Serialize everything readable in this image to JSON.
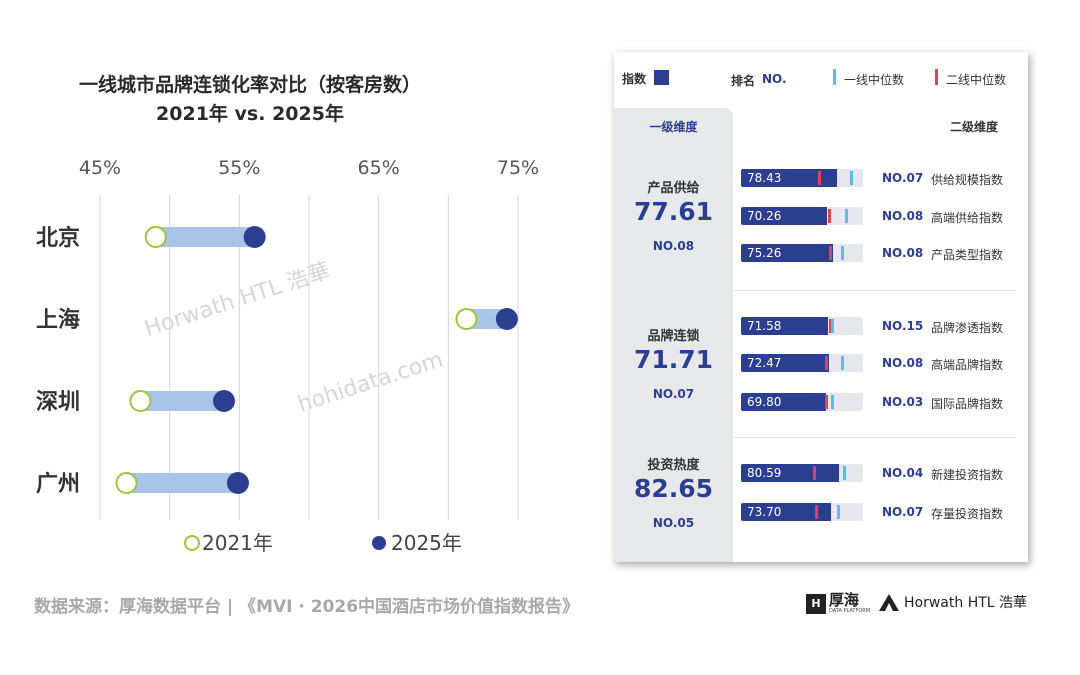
{
  "chart_data": [
    {
      "type": "dumbbell",
      "title": "一线城市品牌连锁化率对比（按客房数）",
      "subtitle": "2021年 vs. 2025年",
      "x_ticks": [
        "45%",
        "55%",
        "65%",
        "75%"
      ],
      "xlim": [
        45,
        75
      ],
      "grid": true,
      "categories": [
        "北京",
        "上海",
        "深圳",
        "广州"
      ],
      "series": [
        {
          "name": "2021年",
          "values": [
            49.0,
            71.3,
            47.9,
            46.9
          ]
        },
        {
          "name": "2025年",
          "values": [
            56.1,
            74.2,
            53.9,
            54.9
          ]
        }
      ],
      "legend_position": "bottom"
    },
    {
      "type": "bar",
      "legend": {
        "index_label": "指数",
        "rank_label": "排名",
        "rank_sample": "NO.",
        "median1_label": "一线中位数",
        "median2_label": "二线中位数"
      },
      "header": {
        "level1": "一级维度",
        "level2": "二级维度"
      },
      "xlim": [
        0,
        100
      ],
      "groups": [
        {
          "name": "产品供给",
          "score": "77.61",
          "rank": "NO.08",
          "items": [
            {
              "value": 78.43,
              "value_label": "78.43",
              "rank": "NO.07",
              "name": "供给规模指数",
              "median1": 89,
              "median2": 63
            },
            {
              "value": 70.26,
              "value_label": "70.26",
              "rank": "NO.08",
              "name": "高端供给指数",
              "median1": 85,
              "median2": 71
            },
            {
              "value": 75.26,
              "value_label": "75.26",
              "rank": "NO.08",
              "name": "产品类型指数",
              "median1": 82,
              "median2": 72
            }
          ]
        },
        {
          "name": "品牌连锁",
          "score": "71.71",
          "rank": "NO.07",
          "items": [
            {
              "value": 71.58,
              "value_label": "71.58",
              "rank": "NO.15",
              "name": "品牌渗透指数",
              "median1": 74,
              "median2": 72
            },
            {
              "value": 72.47,
              "value_label": "72.47",
              "rank": "NO.08",
              "name": "高端品牌指数",
              "median1": 82,
              "median2": 69
            },
            {
              "value": 69.8,
              "value_label": "69.80",
              "rank": "NO.03",
              "name": "国际品牌指数",
              "median1": 74,
              "median2": 69
            }
          ]
        },
        {
          "name": "投资热度",
          "score": "82.65",
          "rank": "NO.05",
          "items": [
            {
              "value": 80.59,
              "value_label": "80.59",
              "rank": "NO.04",
              "name": "新建投资指数",
              "median1": 84,
              "median2": 59
            },
            {
              "value": 73.7,
              "value_label": "73.70",
              "rank": "NO.07",
              "name": "存量投资指数",
              "median1": 79,
              "median2": 61
            }
          ]
        }
      ]
    }
  ],
  "footer": {
    "source": "数据来源：厚海数据平台  |  《MVI · 2026中国酒店市场价值指数报告》"
  },
  "logos": {
    "hohi": "厚海",
    "hohi_sub": "DATA PLATFORM",
    "horwath": "Horwath HTL 浩華"
  },
  "watermarks": {
    "horwath": "Horwath HTL 浩華",
    "hohidata": "hohidata.com"
  },
  "colors": {
    "navy": "#2c3e8f",
    "light_bar": "#a8c4e8",
    "open_circle_stroke": "#9dc43c",
    "median1": "#55c0e6",
    "median2": "#e0405a"
  }
}
